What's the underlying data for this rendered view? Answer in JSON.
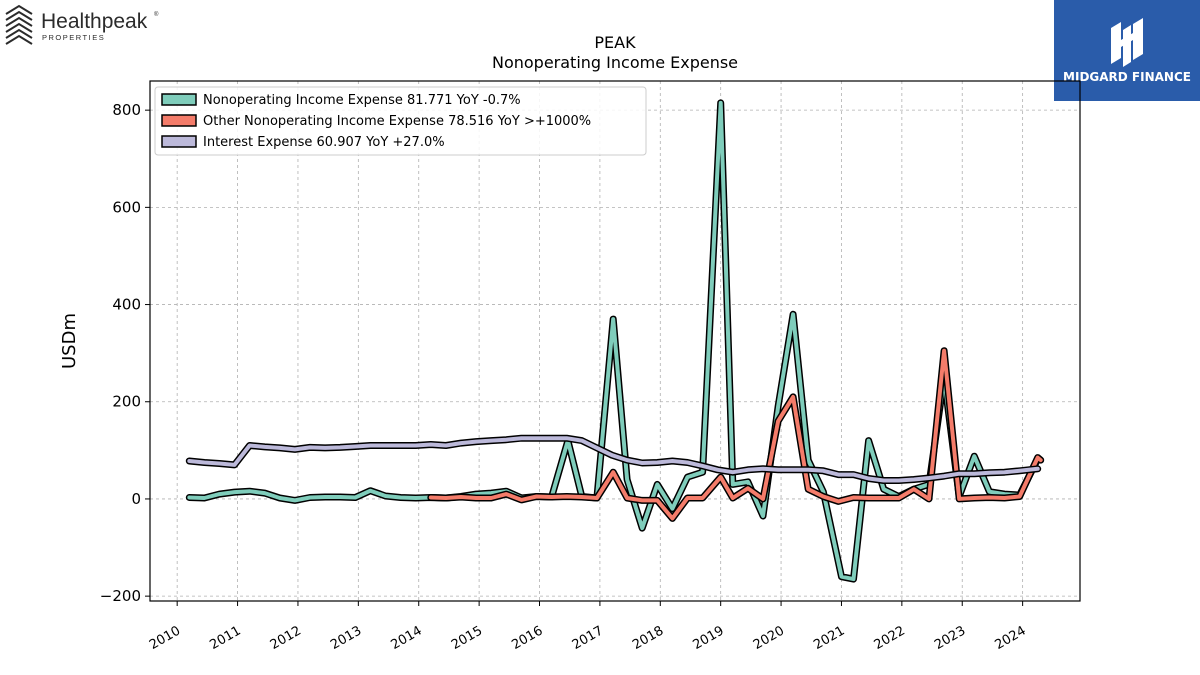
{
  "brand_left": {
    "name": "Healthpeak",
    "registered": "®",
    "sub": "PROPERTIES"
  },
  "brand_right": {
    "name": "MIDGARD FINANCE"
  },
  "chart_data": {
    "type": "line",
    "title": "PEAK",
    "subtitle": "Nonoperating Income Expense",
    "ylabel": "USDm",
    "xlabel": "",
    "ylim": [
      -210,
      860
    ],
    "xlim": [
      2009.55,
      2024.95
    ],
    "yticks": [
      -200,
      0,
      200,
      400,
      600,
      800
    ],
    "ytick_labels": [
      "−200",
      "0",
      "200",
      "400",
      "600",
      "800"
    ],
    "xticks": [
      2010,
      2011,
      2012,
      2013,
      2014,
      2015,
      2016,
      2017,
      2018,
      2019,
      2020,
      2021,
      2022,
      2023,
      2024
    ],
    "grid": true,
    "legend_position": "top-left",
    "series": [
      {
        "name": "Nonoperating Income Expense",
        "legend": "Nonoperating Income Expense  81.771 YoY -0.7%",
        "color": "#7fcdbb",
        "points": [
          [
            2010.2,
            3
          ],
          [
            2010.45,
            2
          ],
          [
            2010.7,
            10
          ],
          [
            2010.95,
            14
          ],
          [
            2011.2,
            16
          ],
          [
            2011.45,
            12
          ],
          [
            2011.7,
            2
          ],
          [
            2011.95,
            -3
          ],
          [
            2012.2,
            3
          ],
          [
            2012.45,
            4
          ],
          [
            2012.7,
            4
          ],
          [
            2012.95,
            3
          ],
          [
            2013.2,
            17
          ],
          [
            2013.45,
            6
          ],
          [
            2013.7,
            3
          ],
          [
            2013.95,
            2
          ],
          [
            2014.2,
            3
          ],
          [
            2014.45,
            2
          ],
          [
            2014.7,
            5
          ],
          [
            2014.95,
            10
          ],
          [
            2015.2,
            12
          ],
          [
            2015.45,
            16
          ],
          [
            2015.7,
            2
          ],
          [
            2015.95,
            5
          ],
          [
            2016.2,
            4
          ],
          [
            2016.47,
            120
          ],
          [
            2016.7,
            5
          ],
          [
            2016.95,
            2
          ],
          [
            2017.22,
            370
          ],
          [
            2017.45,
            40
          ],
          [
            2017.7,
            -60
          ],
          [
            2017.95,
            30
          ],
          [
            2018.2,
            -20
          ],
          [
            2018.45,
            45
          ],
          [
            2018.7,
            55
          ],
          [
            2019.0,
            815
          ],
          [
            2019.2,
            30
          ],
          [
            2019.45,
            35
          ],
          [
            2019.7,
            -35
          ],
          [
            2019.95,
            190
          ],
          [
            2020.2,
            380
          ],
          [
            2020.45,
            80
          ],
          [
            2020.7,
            15
          ],
          [
            2021.0,
            -160
          ],
          [
            2021.2,
            -165
          ],
          [
            2021.45,
            120
          ],
          [
            2021.7,
            20
          ],
          [
            2021.95,
            5
          ],
          [
            2022.2,
            20
          ],
          [
            2022.45,
            30
          ],
          [
            2022.7,
            250
          ],
          [
            2022.95,
            5
          ],
          [
            2023.2,
            88
          ],
          [
            2023.45,
            15
          ],
          [
            2023.7,
            10
          ],
          [
            2023.95,
            8
          ],
          [
            2024.25,
            82
          ]
        ]
      },
      {
        "name": "Other Nonoperating Income Expense",
        "legend": "Other Nonoperating Income Expense  78.516 YoY >+1000%",
        "color": "#f47c6a",
        "points": [
          [
            2014.2,
            3
          ],
          [
            2014.45,
            2
          ],
          [
            2014.7,
            4
          ],
          [
            2014.95,
            2
          ],
          [
            2015.2,
            2
          ],
          [
            2015.45,
            10
          ],
          [
            2015.7,
            -2
          ],
          [
            2015.95,
            5
          ],
          [
            2016.2,
            4
          ],
          [
            2016.45,
            5
          ],
          [
            2016.7,
            4
          ],
          [
            2016.95,
            2
          ],
          [
            2017.22,
            55
          ],
          [
            2017.45,
            2
          ],
          [
            2017.7,
            -3
          ],
          [
            2017.95,
            -3
          ],
          [
            2018.2,
            -40
          ],
          [
            2018.45,
            2
          ],
          [
            2018.7,
            2
          ],
          [
            2019.0,
            45
          ],
          [
            2019.2,
            2
          ],
          [
            2019.45,
            22
          ],
          [
            2019.7,
            0
          ],
          [
            2019.95,
            160
          ],
          [
            2020.2,
            210
          ],
          [
            2020.45,
            20
          ],
          [
            2020.7,
            5
          ],
          [
            2020.95,
            -5
          ],
          [
            2021.2,
            3
          ],
          [
            2021.45,
            2
          ],
          [
            2021.7,
            2
          ],
          [
            2021.95,
            2
          ],
          [
            2022.2,
            20
          ],
          [
            2022.45,
            0
          ],
          [
            2022.7,
            305
          ],
          [
            2022.95,
            0
          ],
          [
            2023.2,
            2
          ],
          [
            2023.45,
            3
          ],
          [
            2023.7,
            2
          ],
          [
            2023.95,
            5
          ],
          [
            2024.25,
            85
          ],
          [
            2024.3,
            80
          ]
        ]
      },
      {
        "name": "Interest Expense",
        "legend": "Interest Expense  60.907 YoY +27.0%",
        "color": "#bcb9da",
        "points": [
          [
            2010.2,
            78
          ],
          [
            2010.45,
            75
          ],
          [
            2010.7,
            73
          ],
          [
            2010.95,
            70
          ],
          [
            2011.2,
            110
          ],
          [
            2011.45,
            107
          ],
          [
            2011.7,
            105
          ],
          [
            2011.95,
            102
          ],
          [
            2012.2,
            106
          ],
          [
            2012.45,
            105
          ],
          [
            2012.7,
            106
          ],
          [
            2012.95,
            108
          ],
          [
            2013.2,
            110
          ],
          [
            2013.45,
            110
          ],
          [
            2013.7,
            110
          ],
          [
            2013.95,
            110
          ],
          [
            2014.2,
            112
          ],
          [
            2014.45,
            110
          ],
          [
            2014.7,
            115
          ],
          [
            2014.95,
            118
          ],
          [
            2015.2,
            120
          ],
          [
            2015.45,
            122
          ],
          [
            2015.7,
            125
          ],
          [
            2015.95,
            125
          ],
          [
            2016.2,
            125
          ],
          [
            2016.45,
            125
          ],
          [
            2016.7,
            120
          ],
          [
            2016.95,
            105
          ],
          [
            2017.2,
            90
          ],
          [
            2017.45,
            80
          ],
          [
            2017.7,
            74
          ],
          [
            2017.95,
            75
          ],
          [
            2018.2,
            78
          ],
          [
            2018.45,
            75
          ],
          [
            2018.7,
            68
          ],
          [
            2018.95,
            60
          ],
          [
            2019.2,
            55
          ],
          [
            2019.45,
            60
          ],
          [
            2019.7,
            62
          ],
          [
            2019.95,
            60
          ],
          [
            2020.2,
            60
          ],
          [
            2020.45,
            60
          ],
          [
            2020.7,
            58
          ],
          [
            2020.95,
            50
          ],
          [
            2021.2,
            50
          ],
          [
            2021.45,
            42
          ],
          [
            2021.7,
            38
          ],
          [
            2021.95,
            38
          ],
          [
            2022.2,
            40
          ],
          [
            2022.45,
            43
          ],
          [
            2022.7,
            47
          ],
          [
            2022.95,
            52
          ],
          [
            2023.2,
            52
          ],
          [
            2023.45,
            54
          ],
          [
            2023.7,
            55
          ],
          [
            2023.95,
            58
          ],
          [
            2024.25,
            62
          ]
        ]
      }
    ]
  }
}
